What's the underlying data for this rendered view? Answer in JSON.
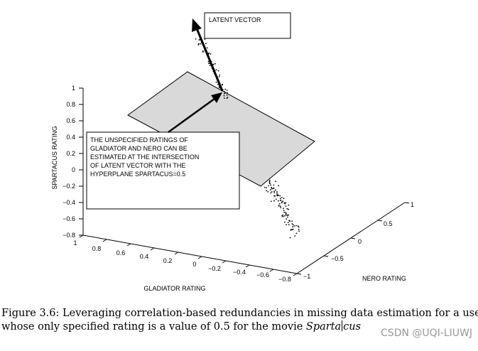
{
  "chart_data": {
    "type": "scatter",
    "title": "",
    "axes": {
      "spartacus": {
        "label": "SPARTACUS RATING",
        "ticks": [
          "1",
          "0.8",
          "0.6",
          "0.4",
          "0.2",
          "0",
          "−0.2",
          "−0.4",
          "−0.6",
          "−0.8"
        ],
        "range": [
          -0.8,
          1
        ]
      },
      "gladiator": {
        "label": "GLADIATOR RATING",
        "ticks": [
          "1",
          "0.8",
          "0.6",
          "0.4",
          "0.2",
          "0",
          "−0.2",
          "−0.4",
          "−0.6",
          "−0.8"
        ],
        "range": [
          -0.8,
          1
        ]
      },
      "nero": {
        "label": "NERO RATING",
        "ticks": [
          "−1",
          "−0.5",
          "0",
          "0.5",
          "1"
        ],
        "range": [
          -1,
          1
        ]
      }
    },
    "hyperplane": {
      "equation": "SPARTACUS=0.5"
    },
    "annotations": {
      "latent_vector": "LATENT VECTOR",
      "note_lines": [
        "THE UNSPECIFIED RATINGS OF",
        "GLADIATOR AND NERO CAN BE",
        "ESTIMATED AT THE INTERSECTION",
        "OF LATENT VECTOR WITH THE",
        "HYPERPLANE SPARTACUS=0.5"
      ]
    },
    "series": [
      {
        "name": "ratings",
        "description": "points scattered along the latent vector direction"
      }
    ]
  },
  "caption": {
    "line1": "Figure 3.6: Leveraging correlation-based redundancies in missing data estimation for a user",
    "line2_prefix": "whose only specified rating is a value of 0.5 for the movie ",
    "movie_part1": "Sparta",
    "movie_part2": "cus"
  },
  "watermark": "CSDN @UQI-LIUWJ"
}
